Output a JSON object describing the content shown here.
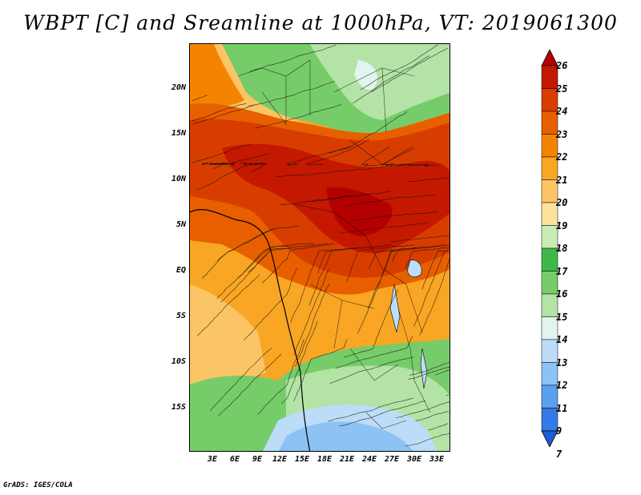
{
  "title": "WBPT [C] and Sreamline at 1000hPa, VT: 2019061300",
  "credit": "GrADS: IGES/COLA",
  "map": {
    "region": "Africa",
    "field": "Wet-bulb potential temperature",
    "units": "C",
    "level": "1000hPa",
    "valid_time": "2019061300",
    "lon_range": [
      0,
      35
    ],
    "lat_range": [
      -20,
      24
    ],
    "lat_labels": [
      "20N",
      "15N",
      "10N",
      "5N",
      "EQ",
      "5S",
      "10S",
      "15S"
    ],
    "lon_labels": [
      "3E",
      "6E",
      "9E",
      "12E",
      "15E",
      "18E",
      "21E",
      "24E",
      "27E",
      "30E",
      "33E"
    ]
  },
  "colorbar": {
    "levels": [
      "26",
      "25",
      "24",
      "23",
      "22",
      "21",
      "20",
      "19",
      "18",
      "17",
      "16",
      "15",
      "14",
      "13",
      "12",
      "11",
      "9",
      "7"
    ],
    "colors": [
      "#b50000",
      "#c51800",
      "#d83d00",
      "#e85f00",
      "#f48400",
      "#f8a623",
      "#fbc566",
      "#fde29b",
      "#c9ecb4",
      "#3fb84a",
      "#77cc6a",
      "#b3e3a5",
      "#e1f4f0",
      "#bcdcf8",
      "#8cc2f4",
      "#5b9ff0",
      "#347ae8",
      "#1e5ccf"
    ]
  }
}
